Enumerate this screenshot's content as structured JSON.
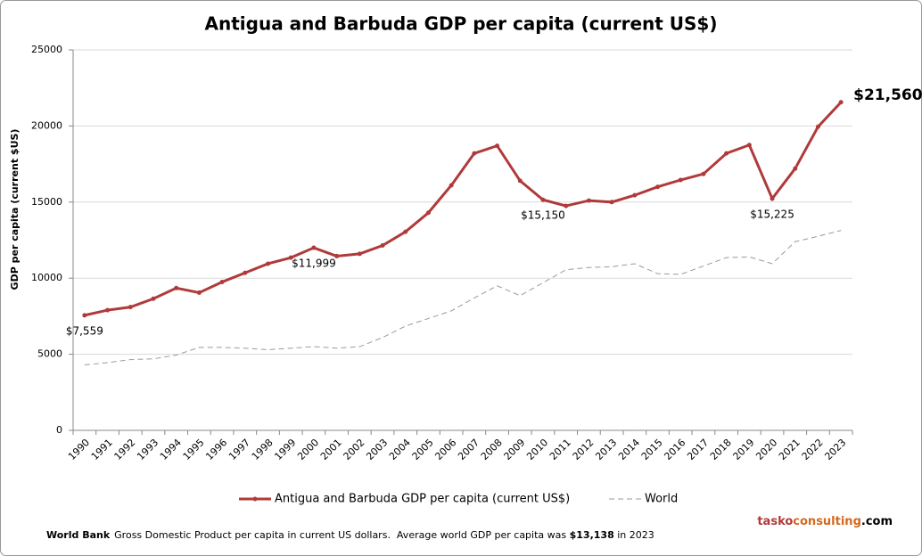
{
  "chart_data": {
    "type": "line",
    "title": "Antigua and Barbuda GDP per capita (current US$)",
    "y_label": "GDP per capita (current $US)",
    "categories": [
      "1990",
      "1991",
      "1992",
      "1993",
      "1994",
      "1995",
      "1996",
      "1997",
      "1998",
      "1999",
      "2000",
      "2001",
      "2002",
      "2003",
      "2004",
      "2005",
      "2006",
      "2007",
      "2008",
      "2009",
      "2010",
      "2011",
      "2012",
      "2013",
      "2014",
      "2015",
      "2016",
      "2017",
      "2018",
      "2019",
      "2020",
      "2021",
      "2022",
      "2023"
    ],
    "series": [
      {
        "name": "Antigua and Barbuda GDP per capita (current US$)",
        "color": "#b03a3a",
        "line_style": "solid",
        "marker": "circle",
        "values": [
          7559,
          7900,
          8100,
          8650,
          9350,
          9050,
          9750,
          10350,
          10950,
          11350,
          11999,
          11450,
          11600,
          12150,
          13050,
          14300,
          16100,
          18200,
          18700,
          16400,
          15150,
          14750,
          15100,
          15000,
          15450,
          16000,
          16450,
          16850,
          18200,
          18750,
          15225,
          17200,
          19950,
          21560
        ],
        "value_labels": [
          "$7,559",
          null,
          null,
          null,
          null,
          null,
          null,
          null,
          null,
          null,
          "$11,999",
          null,
          null,
          null,
          null,
          null,
          null,
          null,
          null,
          null,
          "$15,150",
          null,
          null,
          null,
          null,
          null,
          null,
          null,
          null,
          null,
          "$15,225",
          null,
          null,
          "$21,560"
        ]
      },
      {
        "name": "World",
        "color": "#9a9a9a",
        "line_style": "dashed",
        "marker": "none",
        "values": [
          4300,
          4450,
          4650,
          4700,
          4950,
          5450,
          5450,
          5400,
          5300,
          5400,
          5500,
          5400,
          5500,
          6100,
          6850,
          7350,
          7850,
          8700,
          9500,
          8850,
          9700,
          10550,
          10700,
          10750,
          10950,
          10300,
          10250,
          10800,
          11350,
          11400,
          10950,
          12400,
          12750,
          13138
        ]
      }
    ],
    "ylim": [
      0,
      25000
    ],
    "yticks": [
      0,
      5000,
      10000,
      15000,
      20000,
      25000
    ],
    "grid": true,
    "legend_position": "bottom",
    "footer": {
      "source": "World Bank",
      "text": "Gross Domestic Product per capita in current US dollars.  Average world GDP per capita was ",
      "highlight": "$13,138",
      "tail": " in 2023"
    },
    "brand": {
      "part1": "tasko",
      "part2": "consulting",
      "part3": ".com"
    }
  }
}
